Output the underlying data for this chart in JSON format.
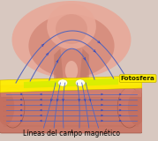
{
  "bg_color": "#d8c8c0",
  "title": "Líneas del campo magnético",
  "fotosfera_label": "Fotosfera",
  "title_fontsize": 5.5,
  "label_fontsize": 5.2,
  "sun_outer_color": "#e8a898",
  "sun_inner_color": "#d48878",
  "sun_neck_color": "#c07868",
  "photosphere_yellow": "#ffee00",
  "photosphere_green": "#ccee00",
  "tube_color": "#c87868",
  "tube_line_color": "#b06858",
  "arrow_color": "#3344bb",
  "line_color": "#5566bb",
  "white": "#ffffff"
}
